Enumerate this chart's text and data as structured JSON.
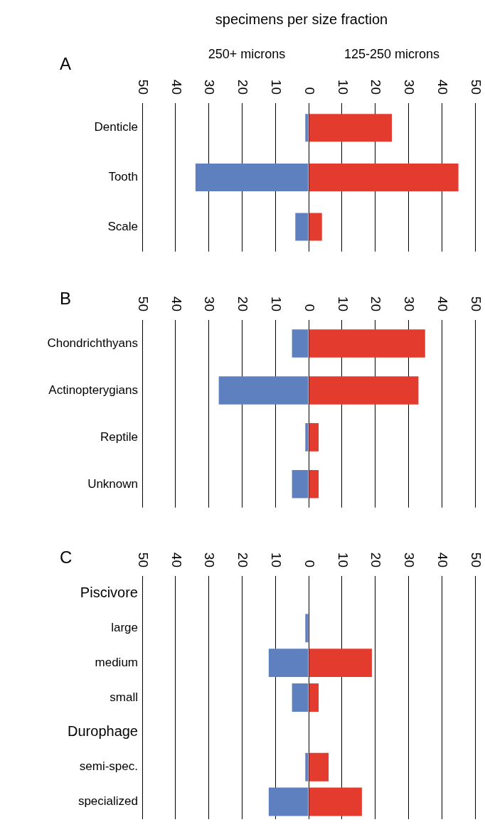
{
  "chart_data": [
    {
      "type": "bar",
      "title": "A",
      "xlabel": "specimens per size fraction",
      "orientation": "horizontal",
      "stacked": true,
      "grid": "x",
      "categories": [
        "Denticle",
        "Tooth",
        "Scale"
      ],
      "annotations": [
        "250+ microns",
        "125-250 microns"
      ],
      "xlim": [
        -50,
        50
      ],
      "xticks": [
        {
          "value": -50,
          "label": "50"
        },
        {
          "value": -40,
          "label": "40"
        },
        {
          "value": -30,
          "label": "30"
        },
        {
          "value": -20,
          "label": "20"
        },
        {
          "value": -10,
          "label": "10"
        },
        0,
        10,
        20,
        30,
        40,
        50
      ],
      "series": [
        {
          "color": "#5e80bf",
          "values": [
            -1,
            -34,
            -4
          ]
        },
        {
          "color": "#e33b2e",
          "values": [
            25,
            45,
            4
          ]
        }
      ]
    },
    {
      "type": "bar",
      "title": "B",
      "orientation": "horizontal",
      "stacked": true,
      "grid": "x",
      "categories": [
        "Chondrichthyans",
        "Actinopterygians",
        "Reptile",
        "Unknown"
      ],
      "xlim": [
        -50,
        50
      ],
      "xticks": [
        {
          "value": -50,
          "label": "50"
        },
        {
          "value": -40,
          "label": "40"
        },
        {
          "value": -30,
          "label": "30"
        },
        {
          "value": -20,
          "label": "20"
        },
        {
          "value": -10,
          "label": "10"
        },
        0,
        10,
        20,
        30,
        40,
        50
      ],
      "series": [
        {
          "color": "#5e80bf",
          "values": [
            -5,
            -27,
            -1,
            -5
          ]
        },
        {
          "color": "#e33b2e",
          "values": [
            35,
            33,
            3,
            3
          ]
        }
      ]
    },
    {
      "type": "bar",
      "title": "C",
      "orientation": "horizontal",
      "stacked": true,
      "grid": "x",
      "categories": [
        "Piscivore",
        "large",
        "medium",
        "small",
        "Durophage",
        "semi-spec.",
        "specialized"
      ],
      "xlim": [
        -50,
        50
      ],
      "xticks": [
        {
          "value": -50,
          "label": "50"
        },
        {
          "value": -40,
          "label": "40"
        },
        {
          "value": -30,
          "label": "30"
        },
        {
          "value": -20,
          "label": "20"
        },
        {
          "value": -10,
          "label": "10"
        },
        0,
        10,
        20,
        30,
        40,
        50
      ],
      "series": [
        {
          "color": "#5e80bf",
          "values": [
            null,
            -1,
            -12,
            -5,
            null,
            -1,
            -12
          ]
        },
        {
          "color": "#e33b2e",
          "values": [
            null,
            0,
            19,
            3,
            null,
            6,
            16
          ]
        }
      ]
    }
  ]
}
